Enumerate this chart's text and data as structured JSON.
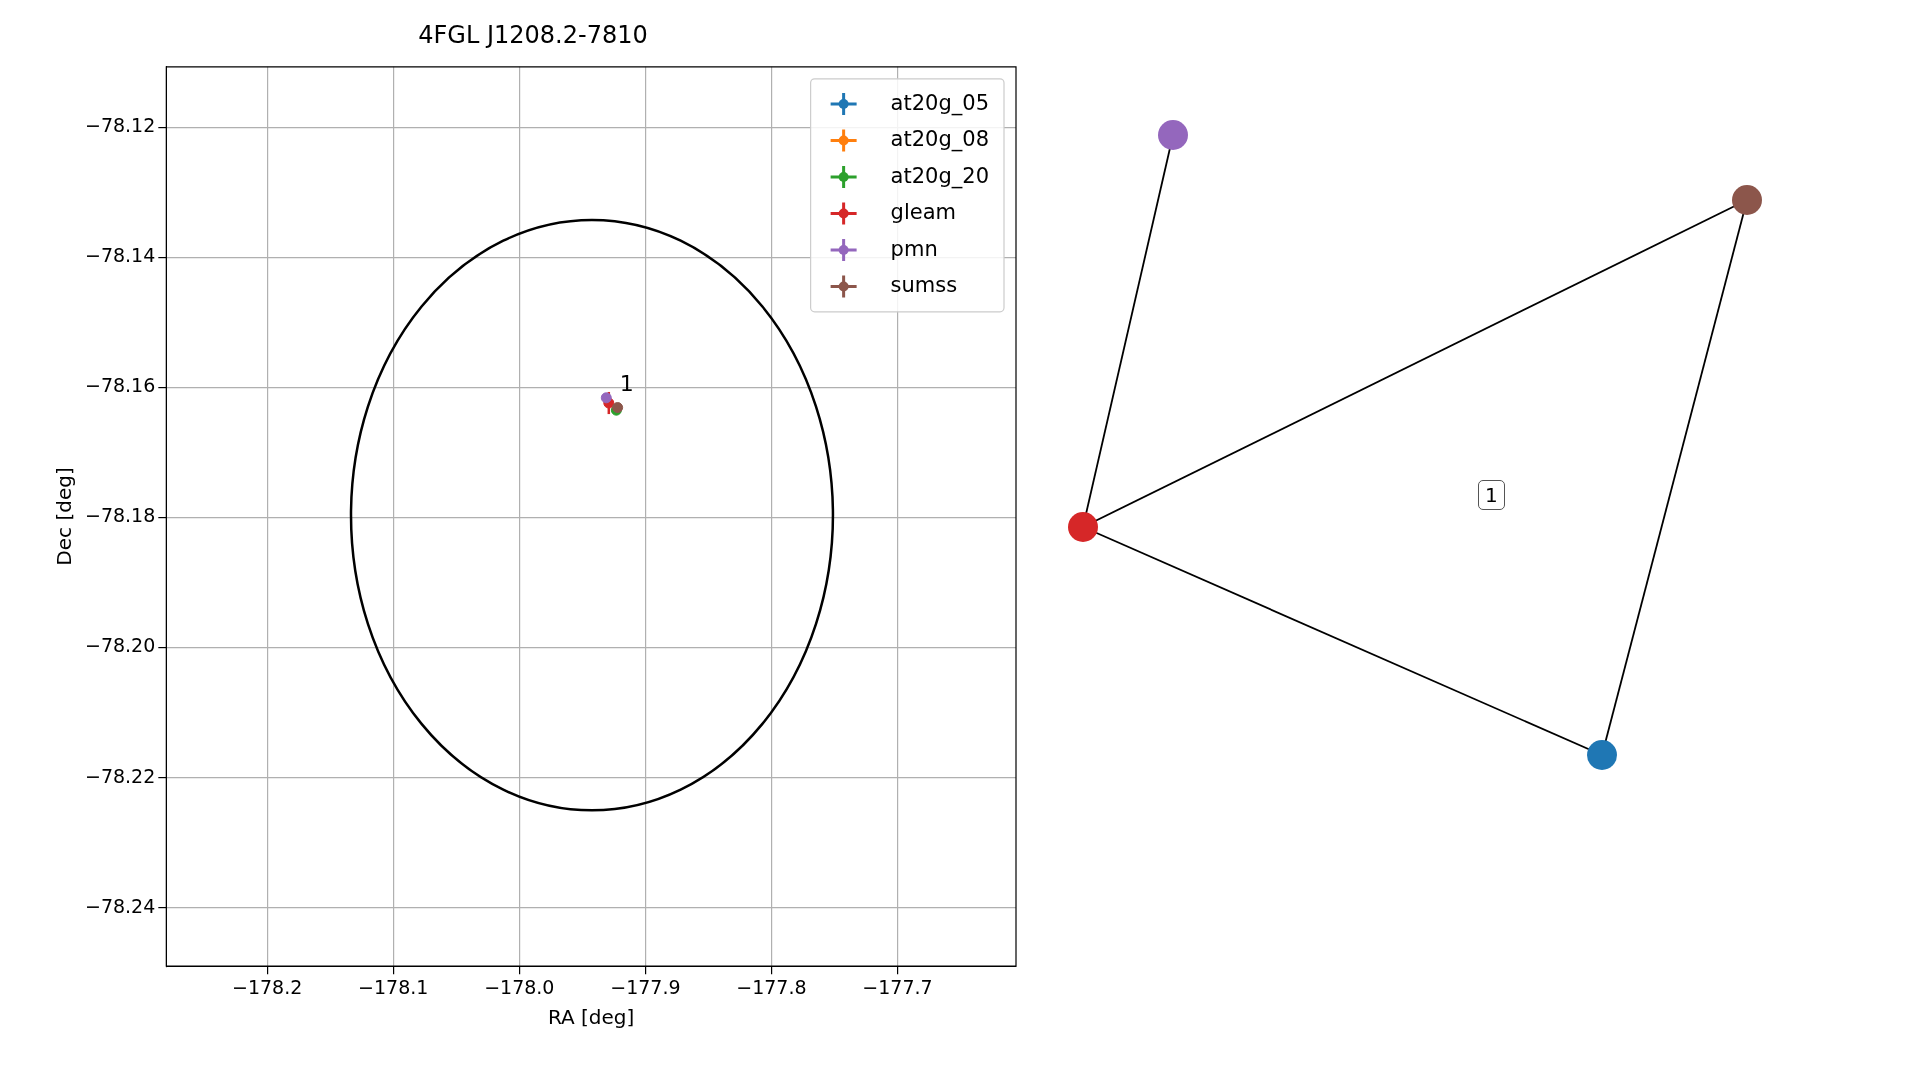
{
  "chart_data": [
    {
      "type": "scatter",
      "title": "4FGL J1208.2-7810",
      "xlabel": "RA [deg]",
      "ylabel": "Dec [deg]",
      "xlim": [
        -178.28,
        -177.606
      ],
      "ylim": [
        -78.249,
        -78.1107
      ],
      "xticks": [
        {
          "value": -178.2,
          "label": "−178.2"
        },
        {
          "value": -178.1,
          "label": "−178.1"
        },
        {
          "value": -178.0,
          "label": "−178.0"
        },
        {
          "value": -177.9,
          "label": "−177.9"
        },
        {
          "value": -177.8,
          "label": "−177.8"
        },
        {
          "value": -177.7,
          "label": "−177.7"
        }
      ],
      "yticks": [
        {
          "value": -78.24,
          "label": "−78.24"
        },
        {
          "value": -78.22,
          "label": "−78.22"
        },
        {
          "value": -78.2,
          "label": "−78.20"
        },
        {
          "value": -78.18,
          "label": "−78.18"
        },
        {
          "value": -78.16,
          "label": "−78.16"
        },
        {
          "value": -78.14,
          "label": "−78.14"
        },
        {
          "value": -78.12,
          "label": "−78.12"
        }
      ],
      "grid": true,
      "legend": "top right",
      "marker": "circle",
      "series": [
        {
          "name": "at20g_05",
          "color": "#1f77b4",
          "values": [
            null
          ]
        },
        {
          "name": "at20g_08",
          "color": "#ff7f0e",
          "values": [
            null
          ]
        },
        {
          "name": "at20g_20",
          "color": "#2ca02c",
          "x": [
            -177.923
          ],
          "values": [
            -78.1635
          ]
        },
        {
          "name": "gleam",
          "color": "#d62728",
          "x": [
            -177.929
          ],
          "values": [
            -78.1624
          ],
          "errors": [
            0.0017
          ]
        },
        {
          "name": "pmn",
          "color": "#9467bd",
          "x": [
            -177.931
          ],
          "values": [
            -78.1616
          ]
        },
        {
          "name": "sumss",
          "color": "#8c564b",
          "x": [
            -177.922
          ],
          "values": [
            -78.1631
          ]
        }
      ],
      "annotations": [
        {
          "text": "1",
          "x": -177.922,
          "y": -78.1616
        }
      ]
    },
    {
      "type": "other",
      "annotations": [
        "1"
      ]
    }
  ]
}
